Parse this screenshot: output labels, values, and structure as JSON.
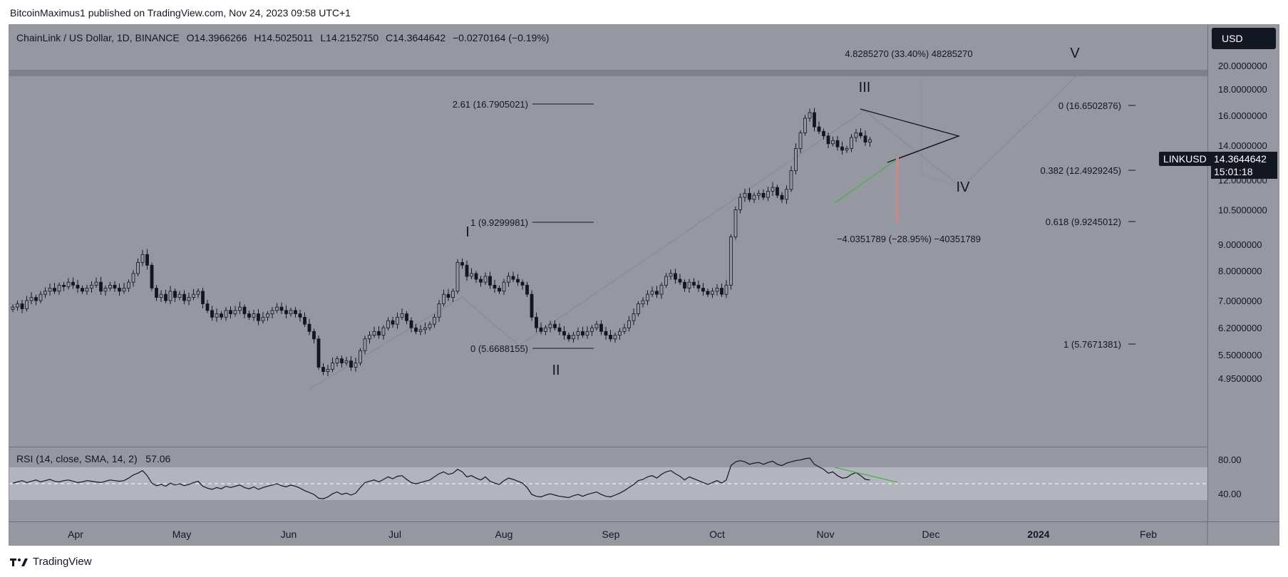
{
  "publisher_line": "BitcoinMaximus1 published on TradingView.com, Nov 24, 2023 09:58 UTC+1",
  "legend": {
    "symbol": "ChainLink / US Dollar, 1D, BINANCE",
    "open_label": "O",
    "open": "14.3966266",
    "high_label": "H",
    "high": "14.5025011",
    "low_label": "L",
    "low": "14.2152750",
    "close_label": "C",
    "close": "14.3644642",
    "change": "−0.0270164 (−0.19%)"
  },
  "currency_button": "USD",
  "ticker_tag": "LINKUSD",
  "last_price": "14.3644642",
  "countdown": "15:01:18",
  "rsi_legend": {
    "label": "RSI (14, close, SMA, 14, 2)",
    "value": "57.06"
  },
  "branding": "TradingView",
  "colors": {
    "background": "#9598a1",
    "candle": "#131722",
    "green_line": "#4caf50",
    "red_bar": "#c48a8c",
    "resistance_band": "#7e818a"
  },
  "chart_data": {
    "type": "candlestick",
    "price_axis": {
      "scale": "log",
      "ticks": [
        "20.0000000",
        "18.0000000",
        "16.0000000",
        "14.0000000",
        "12.0000000",
        "10.5000000",
        "9.0000000",
        "8.0000000",
        "7.0000000",
        "6.2000000",
        "5.5000000",
        "4.9500000"
      ]
    },
    "time_axis": {
      "ticks": [
        "Apr",
        "May",
        "Jun",
        "Jul",
        "Aug",
        "Sep",
        "Oct",
        "Nov",
        "Dec",
        "2024",
        "Feb"
      ]
    },
    "closes": [
      6.8,
      6.9,
      6.75,
      7.0,
      7.1,
      7.0,
      7.2,
      7.3,
      7.4,
      7.3,
      7.5,
      7.45,
      7.6,
      7.5,
      7.4,
      7.3,
      7.4,
      7.5,
      7.6,
      7.3,
      7.4,
      7.5,
      7.4,
      7.3,
      7.4,
      7.6,
      7.9,
      8.3,
      8.6,
      8.2,
      7.4,
      7.1,
      7.2,
      7.0,
      7.3,
      7.1,
      7.2,
      7.0,
      7.1,
      7.2,
      7.3,
      6.9,
      6.7,
      6.5,
      6.6,
      6.5,
      6.7,
      6.6,
      6.7,
      6.8,
      6.6,
      6.5,
      6.6,
      6.4,
      6.5,
      6.6,
      6.7,
      6.8,
      6.7,
      6.6,
      6.7,
      6.6,
      6.5,
      6.3,
      6.1,
      5.9,
      5.2,
      5.1,
      5.15,
      5.3,
      5.4,
      5.3,
      5.35,
      5.2,
      5.3,
      5.6,
      5.9,
      6.0,
      6.1,
      6.0,
      6.2,
      6.4,
      6.3,
      6.5,
      6.6,
      6.4,
      6.2,
      6.1,
      6.15,
      6.2,
      6.3,
      6.5,
      6.9,
      7.2,
      7.1,
      7.3,
      8.3,
      8.2,
      7.8,
      7.9,
      7.7,
      7.6,
      7.8,
      7.5,
      7.4,
      7.3,
      7.6,
      7.8,
      7.7,
      7.6,
      7.5,
      7.2,
      6.5,
      6.2,
      6.1,
      6.2,
      6.3,
      6.2,
      6.1,
      6.0,
      5.9,
      6.0,
      6.1,
      6.0,
      6.1,
      6.2,
      6.3,
      6.1,
      6.0,
      5.9,
      6.0,
      6.1,
      6.2,
      6.4,
      6.6,
      6.9,
      7.0,
      7.2,
      7.3,
      7.2,
      7.5,
      7.8,
      7.9,
      7.7,
      7.6,
      7.4,
      7.6,
      7.5,
      7.4,
      7.3,
      7.2,
      7.3,
      7.4,
      7.2,
      7.5,
      9.3,
      10.5,
      11.1,
      11.3,
      11.0,
      11.2,
      11.3,
      11.1,
      11.4,
      11.6,
      11.2,
      11.0,
      11.5,
      12.5,
      13.8,
      14.8,
      15.8,
      16.2,
      15.2,
      14.9,
      14.6,
      14.1,
      14.3,
      13.9,
      13.7,
      13.8,
      14.5,
      14.8,
      14.6,
      14.2,
      14.36
    ],
    "fibonacci_left": [
      {
        "level": "2.61",
        "value": "(16.7905021)"
      },
      {
        "level": "1",
        "value": "(9.9299981)"
      },
      {
        "level": "0",
        "value": "(5.6688155)"
      }
    ],
    "fibonacci_right": [
      {
        "level": "0",
        "value": "(16.6502876)"
      },
      {
        "level": "0.382",
        "value": "(12.4929245)"
      },
      {
        "level": "0.618",
        "value": "(9.9245012)"
      },
      {
        "level": "1",
        "value": "(5.7671381)"
      }
    ],
    "wave_labels": [
      "I",
      "II",
      "III",
      "IV",
      "V"
    ],
    "annotations": {
      "upside": "4.8285270 (33.40%) 48285270",
      "downside": "−4.0351789 (−28.95%) −40351789"
    },
    "rsi": {
      "ticks": [
        "80.00",
        "40.00"
      ],
      "values": [
        52,
        54,
        56,
        53,
        55,
        57,
        54,
        56,
        58,
        55,
        54,
        56,
        57,
        55,
        53,
        54,
        56,
        55,
        54,
        53,
        55,
        57,
        56,
        55,
        56,
        60,
        65,
        68,
        72,
        64,
        52,
        48,
        50,
        47,
        52,
        49,
        51,
        48,
        50,
        53,
        55,
        47,
        44,
        42,
        45,
        43,
        47,
        45,
        47,
        49,
        45,
        43,
        46,
        42,
        45,
        47,
        49,
        51,
        48,
        46,
        49,
        47,
        44,
        40,
        37,
        34,
        28,
        27,
        30,
        35,
        38,
        34,
        36,
        33,
        36,
        45,
        53,
        55,
        57,
        54,
        58,
        62,
        59,
        63,
        64,
        58,
        53,
        51,
        53,
        55,
        57,
        62,
        67,
        70,
        66,
        68,
        74,
        70,
        62,
        64,
        60,
        57,
        62,
        55,
        52,
        50,
        56,
        60,
        58,
        55,
        52,
        45,
        34,
        31,
        30,
        33,
        35,
        33,
        31,
        30,
        29,
        32,
        34,
        31,
        34,
        36,
        38,
        34,
        31,
        30,
        33,
        36,
        40,
        45,
        50,
        56,
        58,
        62,
        64,
        60,
        66,
        70,
        72,
        67,
        63,
        57,
        62,
        59,
        56,
        53,
        50,
        53,
        56,
        52,
        57,
        80,
        86,
        88,
        86,
        82,
        84,
        85,
        82,
        85,
        87,
        82,
        80,
        84,
        86,
        88,
        89,
        91,
        92,
        82,
        78,
        74,
        68,
        70,
        64,
        60,
        61,
        66,
        69,
        64,
        58,
        57
      ]
    }
  }
}
